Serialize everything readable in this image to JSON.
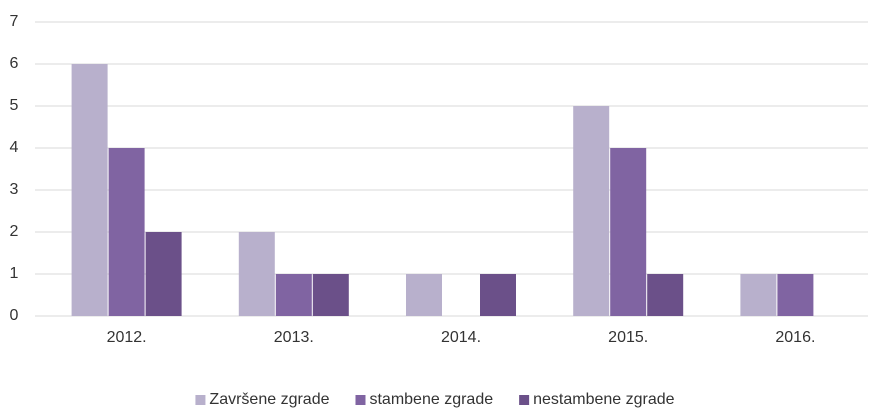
{
  "chart_data": {
    "type": "bar",
    "categories": [
      "2012.",
      "2013.",
      "2014.",
      "2015.",
      "2016."
    ],
    "series": [
      {
        "name": "Završene zgrade",
        "color": "#b8b0cc",
        "values": [
          6,
          2,
          1,
          5,
          1
        ]
      },
      {
        "name": "stambene zgrade",
        "color": "#8064a2",
        "values": [
          4,
          1,
          0,
          4,
          1
        ]
      },
      {
        "name": "nestambene zgrade",
        "color": "#6b5089",
        "values": [
          2,
          1,
          1,
          1,
          0
        ]
      }
    ],
    "ylim": [
      0,
      7
    ],
    "yticks": [
      0,
      1,
      2,
      3,
      4,
      5,
      6,
      7
    ],
    "grid": true,
    "legend": "bottom"
  }
}
